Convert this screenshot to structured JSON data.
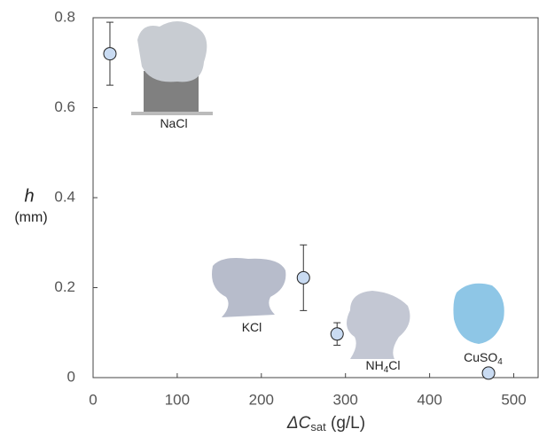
{
  "chart_data": {
    "type": "scatter",
    "x_label": [
      "ΔC",
      "sat",
      " (g/L)"
    ],
    "y_label": [
      "h",
      "(mm)"
    ],
    "series": [
      {
        "color": "#c9dbf2",
        "x": [
          20,
          250,
          290,
          470
        ],
        "values": [
          0.72,
          0.222,
          0.097,
          0.01
        ],
        "errors": [
          0.07,
          0.073,
          0.025,
          null
        ]
      }
    ],
    "annotations": [
      [
        "NaCl"
      ],
      [
        "KCl"
      ],
      [
        "NH",
        "4",
        "Cl"
      ],
      [
        "CuSO",
        "4"
      ]
    ],
    "xlim": [
      0,
      530
    ],
    "ylim": [
      0,
      0.8
    ],
    "xticks": [
      0,
      100,
      200,
      300,
      400,
      500
    ],
    "yticks": [
      0,
      0.2,
      0.4,
      0.6,
      0.8
    ],
    "grid": false
  }
}
